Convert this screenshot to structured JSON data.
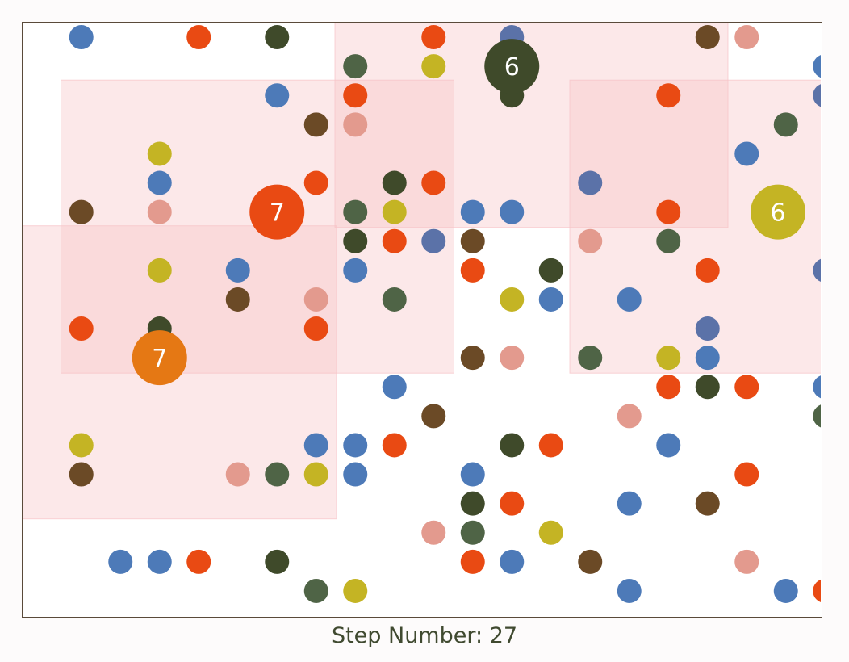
{
  "step": {
    "label": "Step Number:",
    "value": "27"
  },
  "colors": {
    "blue": "#4d7ab8",
    "slate": "#5b72a8",
    "orange": "#e94a13",
    "darkgreen": "#3f4a2a",
    "mossgreen": "#4f6446",
    "brown": "#6b4a26",
    "yellow": "#c4b424",
    "pink": "#e39a8e",
    "amber": "#e57814",
    "zone": "#f6c2c6"
  },
  "zones": [
    {
      "c0": 0,
      "r0": 7,
      "c1": 7,
      "r1": 16
    },
    {
      "c0": 1,
      "r0": 2,
      "c1": 10,
      "r1": 11
    },
    {
      "c0": 8,
      "r0": 0,
      "c1": 17,
      "r1": 6
    },
    {
      "c0": 14,
      "r0": 2,
      "c1": 20,
      "r1": 11
    }
  ],
  "agents": [
    {
      "col": 12,
      "row": 1,
      "color": "darkgreen",
      "label": "6",
      "tail": true
    },
    {
      "col": 18.8,
      "row": 6,
      "color": "yellow",
      "label": "6"
    },
    {
      "col": 6,
      "row": 6,
      "color": "orange",
      "label": "7"
    },
    {
      "col": 3,
      "row": 11,
      "color": "amber",
      "label": "7"
    }
  ],
  "dots": [
    {
      "col": 1,
      "row": 0,
      "color": "blue"
    },
    {
      "col": 4,
      "row": 0,
      "color": "orange"
    },
    {
      "col": 6,
      "row": 0,
      "color": "darkgreen"
    },
    {
      "col": 10,
      "row": 0,
      "color": "orange"
    },
    {
      "col": 12,
      "row": 0,
      "color": "slate"
    },
    {
      "col": 17,
      "row": 0,
      "color": "brown"
    },
    {
      "col": 18,
      "row": 0,
      "color": "pink"
    },
    {
      "col": 8,
      "row": 1,
      "color": "mossgreen"
    },
    {
      "col": 10,
      "row": 1,
      "color": "yellow"
    },
    {
      "col": 20,
      "row": 1,
      "color": "blue"
    },
    {
      "col": 6,
      "row": 2,
      "color": "blue"
    },
    {
      "col": 8,
      "row": 2,
      "color": "orange"
    },
    {
      "col": 16,
      "row": 2,
      "color": "orange"
    },
    {
      "col": 20,
      "row": 2,
      "color": "slate"
    },
    {
      "col": 7,
      "row": 3,
      "color": "brown"
    },
    {
      "col": 8,
      "row": 3,
      "color": "pink"
    },
    {
      "col": 19,
      "row": 3,
      "color": "mossgreen"
    },
    {
      "col": 3,
      "row": 4,
      "color": "yellow"
    },
    {
      "col": 18,
      "row": 4,
      "color": "blue"
    },
    {
      "col": 3,
      "row": 5,
      "color": "blue"
    },
    {
      "col": 7,
      "row": 5,
      "color": "orange"
    },
    {
      "col": 9,
      "row": 5,
      "color": "darkgreen"
    },
    {
      "col": 10,
      "row": 5,
      "color": "orange"
    },
    {
      "col": 14,
      "row": 5,
      "color": "slate"
    },
    {
      "col": 1,
      "row": 6,
      "color": "brown"
    },
    {
      "col": 3,
      "row": 6,
      "color": "pink"
    },
    {
      "col": 8,
      "row": 6,
      "color": "mossgreen"
    },
    {
      "col": 9,
      "row": 6,
      "color": "yellow"
    },
    {
      "col": 11,
      "row": 6,
      "color": "blue"
    },
    {
      "col": 12,
      "row": 6,
      "color": "blue"
    },
    {
      "col": 16,
      "row": 6,
      "color": "orange"
    },
    {
      "col": 8,
      "row": 7,
      "color": "darkgreen"
    },
    {
      "col": 9,
      "row": 7,
      "color": "orange"
    },
    {
      "col": 10,
      "row": 7,
      "color": "slate"
    },
    {
      "col": 11,
      "row": 7,
      "color": "brown"
    },
    {
      "col": 14,
      "row": 7,
      "color": "pink"
    },
    {
      "col": 16,
      "row": 7,
      "color": "mossgreen"
    },
    {
      "col": 3,
      "row": 8,
      "color": "yellow"
    },
    {
      "col": 5,
      "row": 8,
      "color": "blue"
    },
    {
      "col": 8,
      "row": 8,
      "color": "blue"
    },
    {
      "col": 11,
      "row": 8,
      "color": "orange"
    },
    {
      "col": 13,
      "row": 8,
      "color": "darkgreen"
    },
    {
      "col": 17,
      "row": 8,
      "color": "orange"
    },
    {
      "col": 20,
      "row": 8,
      "color": "slate"
    },
    {
      "col": 5,
      "row": 9,
      "color": "brown"
    },
    {
      "col": 7,
      "row": 9,
      "color": "pink"
    },
    {
      "col": 9,
      "row": 9,
      "color": "mossgreen"
    },
    {
      "col": 12,
      "row": 9,
      "color": "yellow"
    },
    {
      "col": 13,
      "row": 9,
      "color": "blue"
    },
    {
      "col": 15,
      "row": 9,
      "color": "blue"
    },
    {
      "col": 1,
      "row": 10,
      "color": "orange"
    },
    {
      "col": 3,
      "row": 10,
      "color": "darkgreen"
    },
    {
      "col": 7,
      "row": 10,
      "color": "orange"
    },
    {
      "col": 17,
      "row": 10,
      "color": "slate"
    },
    {
      "col": 11,
      "row": 11,
      "color": "brown"
    },
    {
      "col": 12,
      "row": 11,
      "color": "pink"
    },
    {
      "col": 14,
      "row": 11,
      "color": "mossgreen"
    },
    {
      "col": 16,
      "row": 11,
      "color": "yellow"
    },
    {
      "col": 17,
      "row": 11,
      "color": "blue"
    },
    {
      "col": 9,
      "row": 12,
      "color": "blue"
    },
    {
      "col": 16,
      "row": 12,
      "color": "orange"
    },
    {
      "col": 17,
      "row": 12,
      "color": "darkgreen"
    },
    {
      "col": 18,
      "row": 12,
      "color": "orange"
    },
    {
      "col": 20,
      "row": 12,
      "color": "blue"
    },
    {
      "col": 10,
      "row": 13,
      "color": "brown"
    },
    {
      "col": 15,
      "row": 13,
      "color": "pink"
    },
    {
      "col": 20,
      "row": 13,
      "color": "mossgreen"
    },
    {
      "col": 1,
      "row": 14,
      "color": "yellow"
    },
    {
      "col": 7,
      "row": 14,
      "color": "blue"
    },
    {
      "col": 8,
      "row": 14,
      "color": "blue"
    },
    {
      "col": 9,
      "row": 14,
      "color": "orange"
    },
    {
      "col": 12,
      "row": 14,
      "color": "darkgreen"
    },
    {
      "col": 13,
      "row": 14,
      "color": "orange"
    },
    {
      "col": 16,
      "row": 14,
      "color": "blue"
    },
    {
      "col": 1,
      "row": 15,
      "color": "brown"
    },
    {
      "col": 5,
      "row": 15,
      "color": "pink"
    },
    {
      "col": 6,
      "row": 15,
      "color": "mossgreen"
    },
    {
      "col": 7,
      "row": 15,
      "color": "yellow"
    },
    {
      "col": 8,
      "row": 15,
      "color": "blue"
    },
    {
      "col": 11,
      "row": 15,
      "color": "blue"
    },
    {
      "col": 18,
      "row": 15,
      "color": "orange"
    },
    {
      "col": 11,
      "row": 16,
      "color": "darkgreen"
    },
    {
      "col": 12,
      "row": 16,
      "color": "orange"
    },
    {
      "col": 15,
      "row": 16,
      "color": "blue"
    },
    {
      "col": 17,
      "row": 16,
      "color": "brown"
    },
    {
      "col": 10,
      "row": 17,
      "color": "pink"
    },
    {
      "col": 11,
      "row": 17,
      "color": "mossgreen"
    },
    {
      "col": 13,
      "row": 17,
      "color": "yellow"
    },
    {
      "col": 2,
      "row": 18,
      "color": "blue"
    },
    {
      "col": 3,
      "row": 18,
      "color": "blue"
    },
    {
      "col": 4,
      "row": 18,
      "color": "orange"
    },
    {
      "col": 6,
      "row": 18,
      "color": "darkgreen"
    },
    {
      "col": 11,
      "row": 18,
      "color": "orange"
    },
    {
      "col": 12,
      "row": 18,
      "color": "blue"
    },
    {
      "col": 14,
      "row": 18,
      "color": "brown"
    },
    {
      "col": 18,
      "row": 18,
      "color": "pink"
    },
    {
      "col": 7,
      "row": 19,
      "color": "mossgreen"
    },
    {
      "col": 8,
      "row": 19,
      "color": "yellow"
    },
    {
      "col": 15,
      "row": 19,
      "color": "blue"
    },
    {
      "col": 19,
      "row": 19,
      "color": "blue"
    },
    {
      "col": 20,
      "row": 19,
      "color": "orange"
    }
  ]
}
